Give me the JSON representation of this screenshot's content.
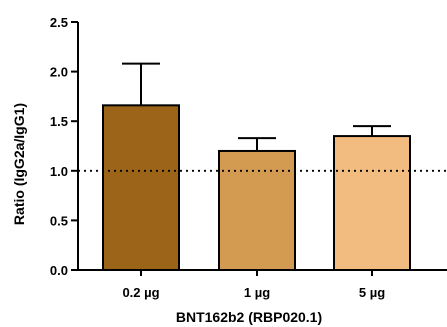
{
  "chart_data": {
    "type": "bar",
    "title": "",
    "xlabel": "BNT162b2 (RBP020.1)",
    "ylabel": "Ratio (IgG2a/IgG1)",
    "categories": [
      "0.2 µg",
      "1 µg",
      "5 µg"
    ],
    "values": [
      1.66,
      1.2,
      1.35
    ],
    "error_upper": [
      2.08,
      1.33,
      1.45
    ],
    "ylim": [
      0,
      2.5
    ],
    "yticks": [
      "0.0",
      "0.5",
      "1.0",
      "1.5",
      "2.0",
      "2.5"
    ],
    "reference_line": 1.0,
    "grid": false,
    "legend": "none",
    "bar_colors": [
      "#9b6419",
      "#d39a52",
      "#f2bb7f"
    ]
  }
}
